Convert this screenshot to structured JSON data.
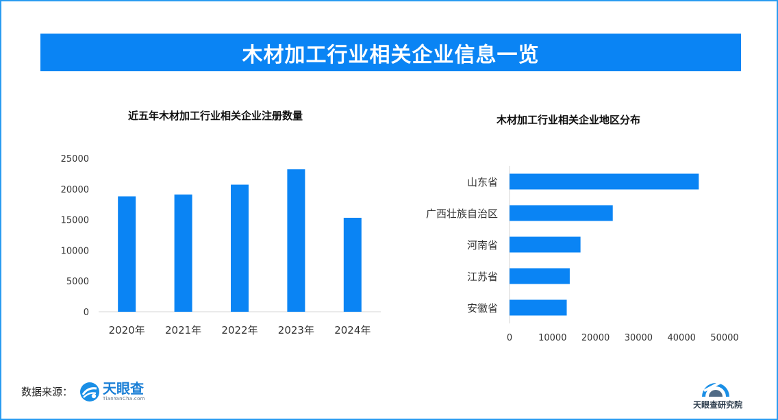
{
  "banner": {
    "title": "木材加工行业相关企业信息一览"
  },
  "colors": {
    "accent": "#0a84f4",
    "bar": "#0a84f4",
    "frame": "#2a9cf0"
  },
  "chart_data": [
    {
      "type": "bar",
      "orientation": "vertical",
      "title": "近五年木材加工行业相关企业注册数量",
      "categories": [
        "2020年",
        "2021年",
        "2022年",
        "2023年",
        "2024年"
      ],
      "values": [
        18800,
        19100,
        20700,
        23200,
        15300
      ],
      "ylim": [
        0,
        25000
      ],
      "yticks": [
        0,
        5000,
        10000,
        15000,
        20000,
        25000
      ],
      "grid": false
    },
    {
      "type": "bar",
      "orientation": "horizontal",
      "title": "木材加工行业相关企业地区分布",
      "categories": [
        "山东省",
        "广西壮族自治区",
        "河南省",
        "江苏省",
        "安徽省"
      ],
      "values": [
        44000,
        24000,
        16500,
        14000,
        13300
      ],
      "xlim": [
        0,
        50000
      ],
      "xticks": [
        0,
        10000,
        20000,
        30000,
        40000,
        50000
      ],
      "grid": false
    }
  ],
  "footer": {
    "source_label": "数据来源：",
    "logo_cn": "天眼查",
    "logo_en": "TianYanCha.com",
    "institute": "天眼查研究院",
    "logo_icon": "tianyancha-logo-icon",
    "institute_icon": "tianyancha-institute-icon"
  }
}
